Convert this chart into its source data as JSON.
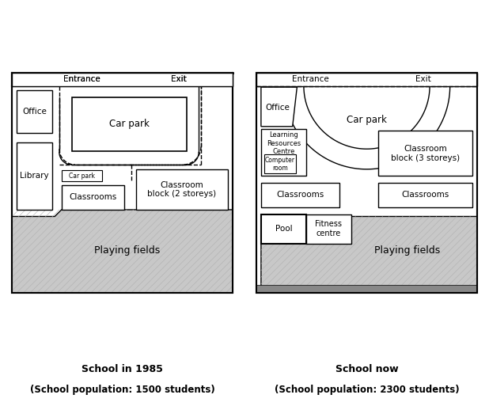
{
  "left_title": "School in 1985",
  "left_subtitle": "(School population: 1500 students)",
  "right_title": "School now",
  "right_subtitle": "(School population: 2300 students)",
  "bg_color": "#ffffff",
  "playing_fields_color": "#c8c8c8"
}
